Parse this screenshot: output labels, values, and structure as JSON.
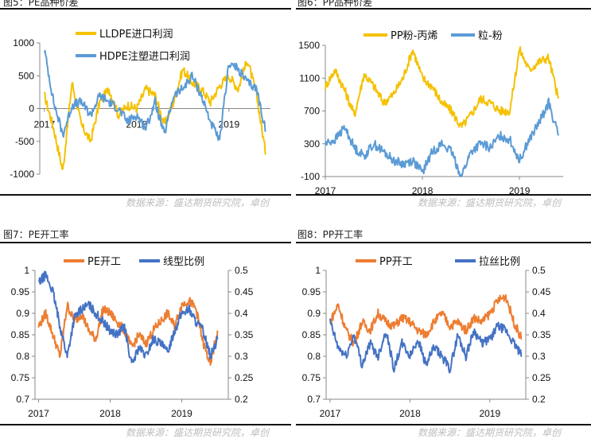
{
  "figures": [
    {
      "title": "图5：PE品种价差",
      "source": "数据来源：盛达期货研究院，卓创"
    },
    {
      "title": "图6：PP品种价差",
      "source": "数据来源：盛达期货研究院，卓创"
    },
    {
      "title": "图7：PE开工率",
      "source": "数据来源：盛达期货研究院，卓创"
    },
    {
      "title": "图8：PP开工率",
      "source": "数据来源：盛达期货研究院，卓创"
    }
  ],
  "chart_data": [
    {
      "type": "line",
      "title": "图5：PE品种价差",
      "x_ticks": [
        "2017",
        "2018",
        "2019"
      ],
      "x_range": [
        2016.95,
        2019.45
      ],
      "y_ticks": [
        "1000",
        "500",
        "0",
        "-500",
        "-1000"
      ],
      "ylim": [
        -1000,
        1000
      ],
      "x_axis_at": 0,
      "legend": "top-left",
      "series": [
        {
          "name": "LLDPE进口利润",
          "color": "#F5C100",
          "x": [
            2017.0,
            2017.1,
            2017.2,
            2017.3,
            2017.4,
            2017.5,
            2017.6,
            2017.7,
            2017.8,
            2017.9,
            2018.0,
            2018.1,
            2018.2,
            2018.3,
            2018.4,
            2018.5,
            2018.6,
            2018.7,
            2018.8,
            2018.9,
            2019.0,
            2019.1,
            2019.2,
            2019.3,
            2019.4
          ],
          "values": [
            200,
            -300,
            -950,
            400,
            -250,
            -500,
            100,
            300,
            -100,
            50,
            0,
            300,
            200,
            -250,
            100,
            600,
            400,
            300,
            100,
            350,
            500,
            300,
            750,
            200,
            -700
          ]
        },
        {
          "name": "HDPE注塑进口利润",
          "color": "#5B9BD5",
          "x": [
            2017.0,
            2017.1,
            2017.2,
            2017.3,
            2017.4,
            2017.5,
            2017.6,
            2017.7,
            2017.8,
            2017.9,
            2018.0,
            2018.1,
            2018.2,
            2018.3,
            2018.4,
            2018.5,
            2018.6,
            2018.7,
            2018.8,
            2018.9,
            2019.0,
            2019.1,
            2019.2,
            2019.3,
            2019.4
          ],
          "values": [
            900,
            100,
            -400,
            50,
            100,
            -100,
            200,
            100,
            0,
            -200,
            -100,
            -300,
            100,
            -400,
            200,
            300,
            500,
            200,
            -200,
            -500,
            700,
            600,
            400,
            300,
            -350
          ]
        }
      ]
    },
    {
      "type": "line",
      "title": "图6：PP品种价差",
      "x_ticks": [
        "2017",
        "2018",
        "2019"
      ],
      "x_range": [
        2017.0,
        2019.45
      ],
      "y_ticks": [
        "1500",
        "1100",
        "700",
        "300",
        "-100"
      ],
      "ylim": [
        -100,
        1500
      ],
      "legend": "top",
      "series": [
        {
          "name": "PP粉-丙烯",
          "color": "#F5C100",
          "x": [
            2017.0,
            2017.1,
            2017.2,
            2017.3,
            2017.4,
            2017.5,
            2017.6,
            2017.7,
            2017.8,
            2017.9,
            2018.0,
            2018.1,
            2018.2,
            2018.3,
            2018.4,
            2018.5,
            2018.6,
            2018.7,
            2018.8,
            2018.9,
            2019.0,
            2019.1,
            2019.2,
            2019.3,
            2019.4
          ],
          "values": [
            1000,
            1200,
            950,
            650,
            1150,
            1000,
            800,
            900,
            1100,
            1450,
            1100,
            1000,
            800,
            700,
            500,
            650,
            850,
            800,
            700,
            700,
            1450,
            1200,
            1300,
            1350,
            850
          ]
        },
        {
          "name": "粒-粉",
          "color": "#5B9BD5",
          "x": [
            2017.0,
            2017.1,
            2017.2,
            2017.3,
            2017.4,
            2017.5,
            2017.6,
            2017.7,
            2017.8,
            2017.9,
            2018.0,
            2018.1,
            2018.2,
            2018.3,
            2018.4,
            2018.5,
            2018.6,
            2018.7,
            2018.8,
            2018.9,
            2019.0,
            2019.1,
            2019.2,
            2019.3,
            2019.4
          ],
          "values": [
            300,
            350,
            500,
            250,
            150,
            300,
            200,
            100,
            50,
            100,
            -50,
            200,
            300,
            200,
            -100,
            200,
            300,
            250,
            400,
            350,
            100,
            350,
            550,
            800,
            400
          ]
        }
      ]
    },
    {
      "type": "line",
      "title": "图7：PE开工率",
      "x_ticks": [
        "2017",
        "2018",
        "2019"
      ],
      "x_range": [
        2016.95,
        2019.65
      ],
      "y_ticks": [
        "1",
        "0.95",
        "0.9",
        "0.85",
        "0.8",
        "0.75",
        "0.7"
      ],
      "ylim": [
        0.7,
        1.0
      ],
      "y2_ticks": [
        "0.5",
        "0.45",
        "0.4",
        "0.35",
        "0.3",
        "0.25",
        "0.2"
      ],
      "y2lim": [
        0.2,
        0.5
      ],
      "legend": "top",
      "series": [
        {
          "name": "PE开工",
          "axis": "left",
          "color": "#ED7D31",
          "x": [
            2017.0,
            2017.1,
            2017.2,
            2017.3,
            2017.4,
            2017.5,
            2017.6,
            2017.7,
            2017.8,
            2017.9,
            2018.0,
            2018.1,
            2018.2,
            2018.3,
            2018.4,
            2018.5,
            2018.6,
            2018.7,
            2018.8,
            2018.9,
            2019.0,
            2019.1,
            2019.2,
            2019.3,
            2019.4,
            2019.5
          ],
          "values": [
            0.87,
            0.9,
            0.85,
            0.8,
            0.92,
            0.88,
            0.9,
            0.86,
            0.84,
            0.91,
            0.9,
            0.88,
            0.86,
            0.82,
            0.85,
            0.83,
            0.86,
            0.88,
            0.9,
            0.87,
            0.92,
            0.93,
            0.91,
            0.83,
            0.78,
            0.86
          ]
        },
        {
          "name": "线型比例",
          "axis": "right",
          "color": "#4472C4",
          "x": [
            2017.0,
            2017.1,
            2017.2,
            2017.3,
            2017.4,
            2017.5,
            2017.6,
            2017.7,
            2017.8,
            2017.9,
            2018.0,
            2018.1,
            2018.2,
            2018.3,
            2018.4,
            2018.5,
            2018.6,
            2018.7,
            2018.8,
            2018.9,
            2019.0,
            2019.1,
            2019.2,
            2019.3,
            2019.4,
            2019.5
          ],
          "values": [
            0.47,
            0.49,
            0.45,
            0.37,
            0.3,
            0.39,
            0.41,
            0.42,
            0.4,
            0.38,
            0.36,
            0.35,
            0.37,
            0.28,
            0.32,
            0.3,
            0.34,
            0.33,
            0.31,
            0.36,
            0.4,
            0.41,
            0.38,
            0.36,
            0.3,
            0.34
          ]
        }
      ]
    },
    {
      "type": "line",
      "title": "图8：PP开工率",
      "x_ticks": [
        "2017",
        "2018",
        "2019"
      ],
      "x_range": [
        2016.95,
        2019.45
      ],
      "y_ticks": [
        "1",
        "0.95",
        "0.9",
        "0.85",
        "0.8",
        "0.75",
        "0.7"
      ],
      "ylim": [
        0.7,
        1.0
      ],
      "y2_ticks": [
        "0.5",
        "0.45",
        "0.4",
        "0.35",
        "0.3",
        "0.25",
        "0.2"
      ],
      "y2lim": [
        0.2,
        0.5
      ],
      "legend": "top",
      "series": [
        {
          "name": "PP开工",
          "axis": "left",
          "color": "#ED7D31",
          "x": [
            2017.0,
            2017.1,
            2017.2,
            2017.3,
            2017.4,
            2017.5,
            2017.6,
            2017.7,
            2017.8,
            2017.9,
            2018.0,
            2018.1,
            2018.2,
            2018.3,
            2018.4,
            2018.5,
            2018.6,
            2018.7,
            2018.8,
            2018.9,
            2019.0,
            2019.1,
            2019.2,
            2019.3,
            2019.4
          ],
          "values": [
            0.88,
            0.92,
            0.86,
            0.83,
            0.88,
            0.86,
            0.9,
            0.88,
            0.87,
            0.89,
            0.88,
            0.86,
            0.85,
            0.88,
            0.9,
            0.87,
            0.88,
            0.86,
            0.89,
            0.88,
            0.9,
            0.93,
            0.94,
            0.88,
            0.84
          ]
        },
        {
          "name": "拉丝比例",
          "axis": "right",
          "color": "#4472C4",
          "x": [
            2017.0,
            2017.1,
            2017.2,
            2017.3,
            2017.4,
            2017.5,
            2017.6,
            2017.7,
            2017.8,
            2017.9,
            2018.0,
            2018.1,
            2018.2,
            2018.3,
            2018.4,
            2018.5,
            2018.6,
            2018.7,
            2018.8,
            2018.9,
            2019.0,
            2019.1,
            2019.2,
            2019.3,
            2019.4
          ],
          "values": [
            0.38,
            0.32,
            0.3,
            0.35,
            0.28,
            0.33,
            0.3,
            0.36,
            0.27,
            0.33,
            0.3,
            0.34,
            0.28,
            0.32,
            0.3,
            0.27,
            0.35,
            0.3,
            0.36,
            0.33,
            0.34,
            0.37,
            0.36,
            0.33,
            0.3
          ]
        }
      ]
    }
  ]
}
